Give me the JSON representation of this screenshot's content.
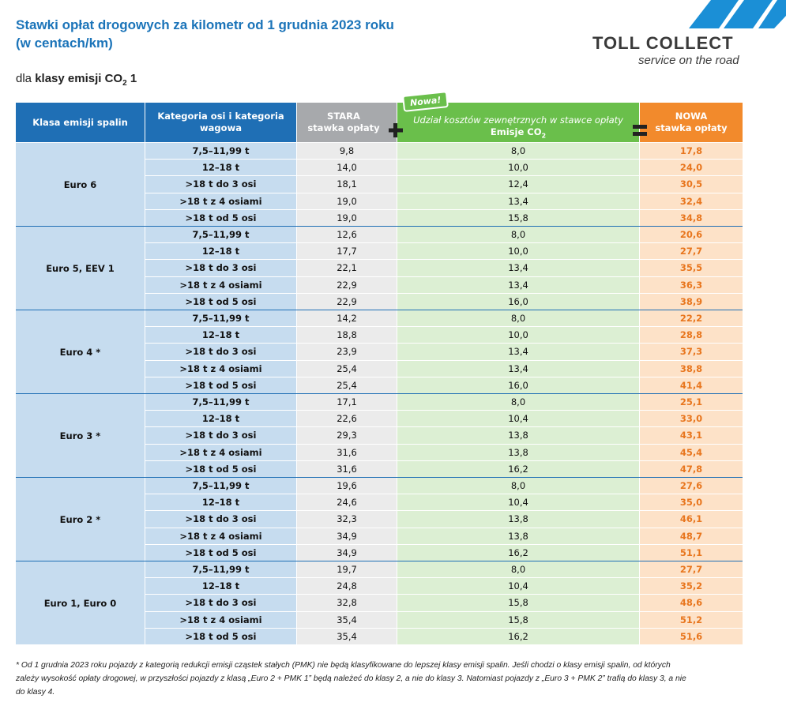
{
  "header": {
    "title_lines": [
      "Stawki opłat drogowych za kilometr od 1 grudnia 2023 roku",
      "(w centach/km)"
    ],
    "logo": {
      "name": "TOLL COLLECT",
      "tagline": "service on the road"
    },
    "subtitle": {
      "prefix": "dla",
      "bold": "klasy emisji CO",
      "sub": "2",
      "suffix": "1"
    }
  },
  "table": {
    "columns": {
      "class": "Klasa emisji spalin",
      "category": [
        "Kategoria osi i kategoria",
        "wagowa"
      ],
      "old": [
        "STARA",
        "stawka opłaty"
      ],
      "external": {
        "label": "Udział kosztów zewnętrznych w stawce opłaty",
        "sub_label": "Emisje CO",
        "sub": "2",
        "badge": "Nowa!"
      },
      "new": [
        "NOWA",
        "stawka opłaty"
      ]
    },
    "groups": [
      {
        "class": "Euro 6",
        "rows": [
          [
            "7,5–11,99 t",
            "9,8",
            "8,0",
            "17,8"
          ],
          [
            "12–18 t",
            "14,0",
            "10,0",
            "24,0"
          ],
          [
            ">18 t do 3 osi",
            "18,1",
            "12,4",
            "30,5"
          ],
          [
            ">18 t z 4 osiami",
            "19,0",
            "13,4",
            "32,4"
          ],
          [
            ">18 t od 5 osi",
            "19,0",
            "15,8",
            "34,8"
          ]
        ]
      },
      {
        "class": "Euro 5, EEV 1",
        "rows": [
          [
            "7,5–11,99 t",
            "12,6",
            "8,0",
            "20,6"
          ],
          [
            "12–18 t",
            "17,7",
            "10,0",
            "27,7"
          ],
          [
            ">18 t do 3 osi",
            "22,1",
            "13,4",
            "35,5"
          ],
          [
            ">18 t z 4 osiami",
            "22,9",
            "13,4",
            "36,3"
          ],
          [
            ">18 t od 5 osi",
            "22,9",
            "16,0",
            "38,9"
          ]
        ]
      },
      {
        "class": "Euro 4 *",
        "rows": [
          [
            "7,5–11,99 t",
            "14,2",
            "8,0",
            "22,2"
          ],
          [
            "12–18 t",
            "18,8",
            "10,0",
            "28,8"
          ],
          [
            ">18 t do 3 osi",
            "23,9",
            "13,4",
            "37,3"
          ],
          [
            ">18 t z 4 osiami",
            "25,4",
            "13,4",
            "38,8"
          ],
          [
            ">18 t od 5 osi",
            "25,4",
            "16,0",
            "41,4"
          ]
        ]
      },
      {
        "class": "Euro 3 *",
        "rows": [
          [
            "7,5–11,99 t",
            "17,1",
            "8,0",
            "25,1"
          ],
          [
            "12–18 t",
            "22,6",
            "10,4",
            "33,0"
          ],
          [
            ">18 t do 3 osi",
            "29,3",
            "13,8",
            "43,1"
          ],
          [
            ">18 t z 4 osiami",
            "31,6",
            "13,8",
            "45,4"
          ],
          [
            ">18 t od 5 osi",
            "31,6",
            "16,2",
            "47,8"
          ]
        ]
      },
      {
        "class": "Euro 2 *",
        "rows": [
          [
            "7,5–11,99 t",
            "19,6",
            "8,0",
            "27,6"
          ],
          [
            "12–18 t",
            "24,6",
            "10,4",
            "35,0"
          ],
          [
            ">18 t do 3 osi",
            "32,3",
            "13,8",
            "46,1"
          ],
          [
            ">18 t z 4 osiami",
            "34,9",
            "13,8",
            "48,7"
          ],
          [
            ">18 t od 5 osi",
            "34,9",
            "16,2",
            "51,1"
          ]
        ]
      },
      {
        "class": "Euro 1, Euro 0",
        "rows": [
          [
            "7,5–11,99 t",
            "19,7",
            "8,0",
            "27,7"
          ],
          [
            "12–18 t",
            "24,8",
            "10,4",
            "35,2"
          ],
          [
            ">18 t do 3 osi",
            "32,8",
            "15,8",
            "48,6"
          ],
          [
            ">18 t z 4 osiami",
            "35,4",
            "15,8",
            "51,2"
          ],
          [
            ">18 t od 5 osi",
            "35,4",
            "16,2",
            "51,6"
          ]
        ]
      }
    ]
  },
  "footnote": [
    "* Od 1 grudnia 2023 roku pojazdy z kategorią redukcji emisji cząstek stałych (PMK) nie będą klasyfikowane do lepszej klasy emisji spalin. Jeśli chodzi o klasy emisji spalin, od których",
    "zależy wysokość opłaty drogowej, w przyszłości pojazdy z klasą „Euro 2 + PMK 1” będą należeć do klasy 2, a nie do klasy 3. Natomiast pojazdy z „Euro 3 + PMK 2” trafią do klasy 3, a nie",
    "do klasy 4."
  ]
}
